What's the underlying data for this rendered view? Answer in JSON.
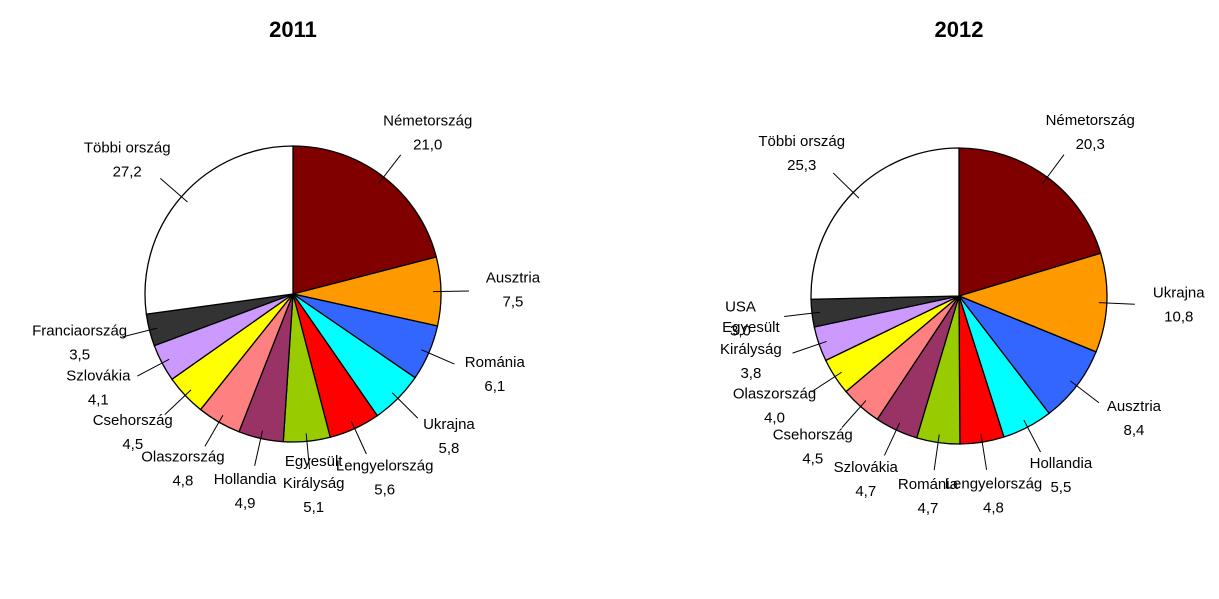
{
  "chart_data": [
    {
      "type": "pie",
      "title": "2011",
      "categories": [
        "Németország",
        "Ausztria",
        "Románia",
        "Ukrajna",
        "Lengyelország",
        "Egyesült Királyság",
        "Hollandia",
        "Olaszország",
        "Csehország",
        "Szlovákia",
        "Franciaország",
        "Többi ország"
      ],
      "values": [
        21.0,
        7.5,
        6.1,
        5.8,
        5.6,
        5.1,
        4.9,
        4.8,
        4.5,
        4.1,
        3.5,
        27.2
      ],
      "value_labels": [
        "21,0",
        "7,5",
        "6,1",
        "5,8",
        "5,6",
        "5,1",
        "4,9",
        "4,8",
        "4,5",
        "4,1",
        "3,5",
        "27,2"
      ],
      "colors": [
        "#800000",
        "#ff9900",
        "#3366ff",
        "#00ffff",
        "#ff0000",
        "#99cc00",
        "#993366",
        "#ff8080",
        "#ffff00",
        "#cc99ff",
        "#333333",
        "#ffffff"
      ]
    },
    {
      "type": "pie",
      "title": "2012",
      "categories": [
        "Németország",
        "Ukrajna",
        "Ausztria",
        "Hollandia",
        "Lengyelország",
        "Románia",
        "Szlovákia",
        "Csehország",
        "Olaszország",
        "Egyesült Királyság",
        "USA",
        "Többi ország"
      ],
      "values": [
        20.3,
        10.8,
        8.4,
        5.5,
        4.8,
        4.7,
        4.7,
        4.5,
        4.0,
        3.8,
        3.0,
        25.3
      ],
      "value_labels": [
        "20,3",
        "10,8",
        "8,4",
        "5,5",
        "4,8",
        "4,7",
        "4,7",
        "4,5",
        "4,0",
        "3,8",
        "3,0",
        "25,3"
      ],
      "colors": [
        "#800000",
        "#ff9900",
        "#3366ff",
        "#00ffff",
        "#ff0000",
        "#99cc00",
        "#993366",
        "#ff8080",
        "#ffff00",
        "#cc99ff",
        "#333333",
        "#ffffff"
      ]
    }
  ]
}
